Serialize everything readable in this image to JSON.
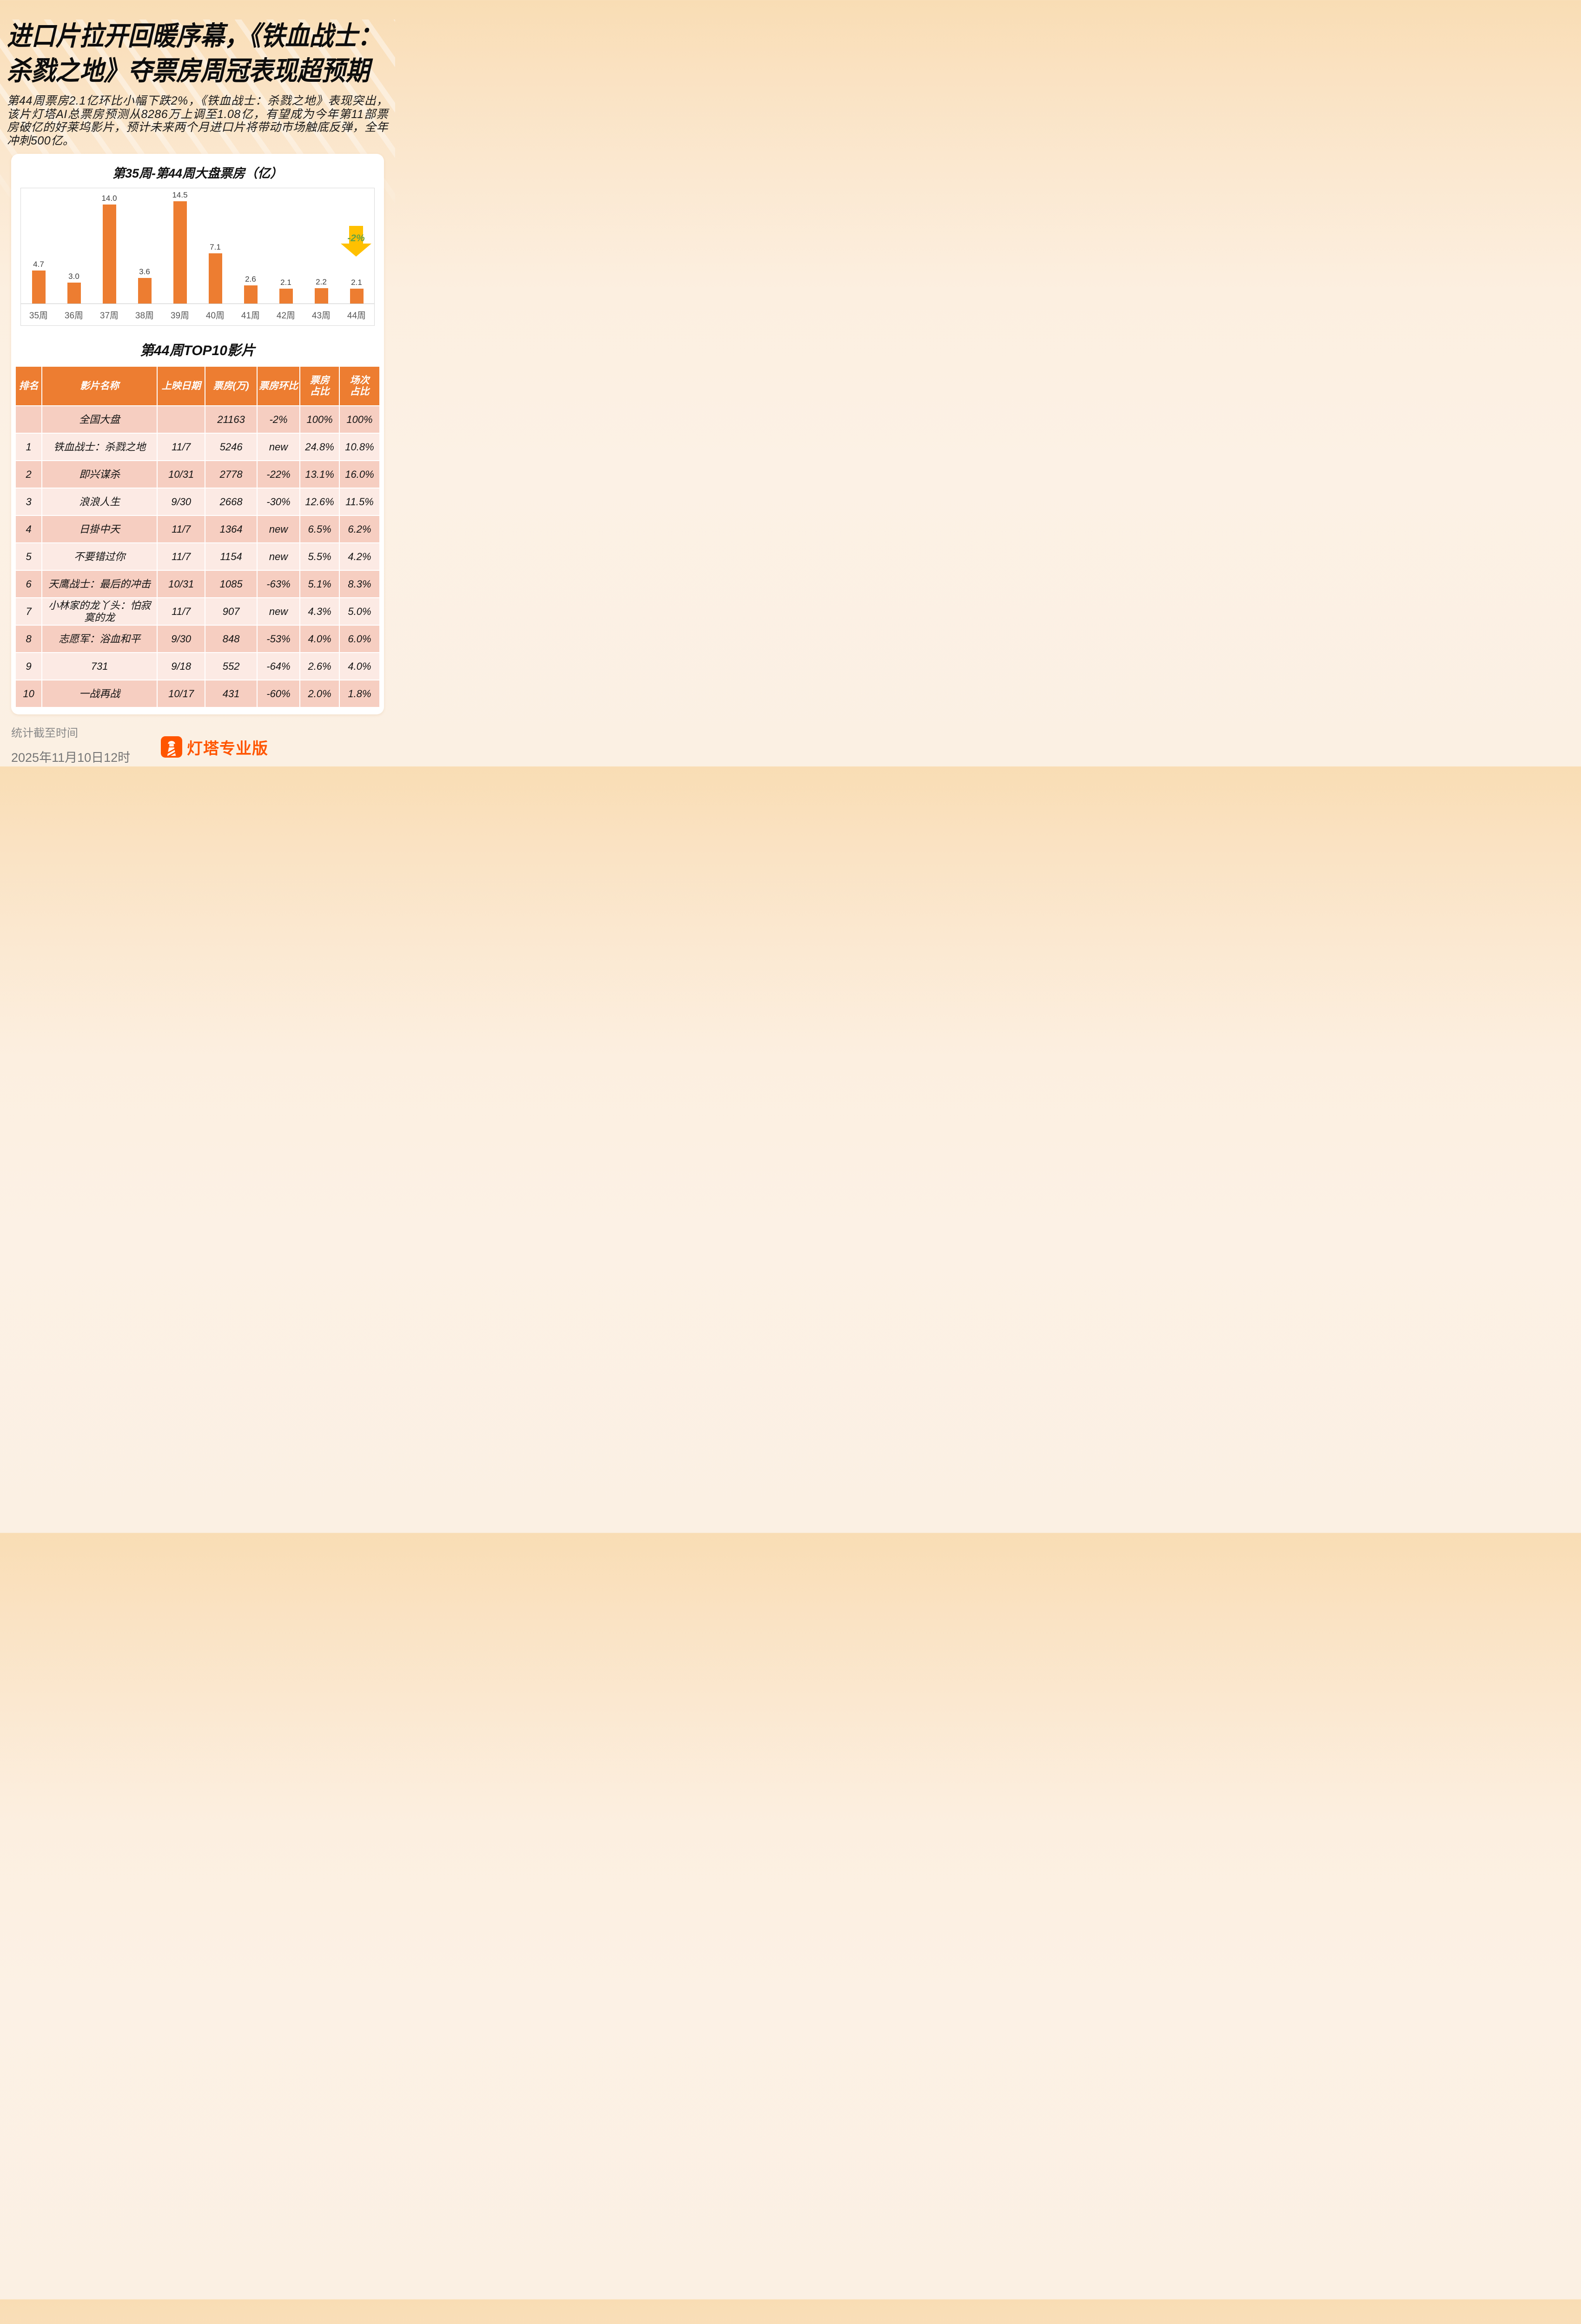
{
  "page": {
    "title_line1": "进口片拉开回暖序幕，《铁血战士：",
    "title_line2": "杀戮之地》夺票房周冠表现超预期",
    "intro": "第44周票房2.1亿环比小幅下跌2%，《铁血战士：杀戮之地》表现突出，该片灯塔AI总票房预测从8286万上调至1.08亿，有望成为今年第11部票房破亿的好莱坞影片，预计未来两个月进口片将带动市场触底反弹，全年冲刺500亿。"
  },
  "chart_data": {
    "type": "bar",
    "title": "第35周-第44周大盘票房（亿）",
    "categories": [
      "35周",
      "36周",
      "37周",
      "38周",
      "39周",
      "40周",
      "41周",
      "42周",
      "43周",
      "44周"
    ],
    "values": [
      4.7,
      3.0,
      14.0,
      3.6,
      14.5,
      7.1,
      2.6,
      2.1,
      2.2,
      2.1
    ],
    "bar_color": "#ED7D31",
    "value_label_color": "#3f3f3f",
    "tick_label_color": "#595959",
    "ylim": [
      0,
      15
    ],
    "grid": false,
    "legend": "none",
    "annotation": {
      "label": "-2%",
      "shape": "down-arrow",
      "target": "44周",
      "arrow_color": "#FFC000",
      "text_color": "#64A244"
    }
  },
  "table": {
    "title": "第44周TOP10影片",
    "headers": [
      "排名",
      "影片名称",
      "上映日期",
      "票房(万)",
      "票房环比",
      "票房\n占比",
      "场次\n占比"
    ],
    "col_widths_pct": [
      7.3,
      31.6,
      13.2,
      14.2,
      11.8,
      10.8,
      11.1
    ],
    "header_bg": "#ED7D31",
    "row_dark_bg": "#F6CEC1",
    "row_light_bg": "#FCEAE4",
    "highlight_color": "#E8160C",
    "rows": [
      {
        "rank": "",
        "name": "全国大盘",
        "date": "",
        "box": "21163",
        "wow": "-2%",
        "box_share": "100%",
        "session_share": "100%",
        "shade": "dark",
        "highlight": false
      },
      {
        "rank": "1",
        "name": "铁血战士：杀戮之地",
        "date": "11/7",
        "box": "5246",
        "wow": "new",
        "box_share": "24.8%",
        "session_share": "10.8%",
        "shade": "light",
        "highlight": true
      },
      {
        "rank": "2",
        "name": "即兴谋杀",
        "date": "10/31",
        "box": "2778",
        "wow": "-22%",
        "box_share": "13.1%",
        "session_share": "16.0%",
        "shade": "dark",
        "highlight": false
      },
      {
        "rank": "3",
        "name": "浪浪人生",
        "date": "9/30",
        "box": "2668",
        "wow": "-30%",
        "box_share": "12.6%",
        "session_share": "11.5%",
        "shade": "light",
        "highlight": false
      },
      {
        "rank": "4",
        "name": "日掛中天",
        "date": "11/7",
        "box": "1364",
        "wow": "new",
        "box_share": "6.5%",
        "session_share": "6.2%",
        "shade": "dark",
        "highlight": false
      },
      {
        "rank": "5",
        "name": "不要错过你",
        "date": "11/7",
        "box": "1154",
        "wow": "new",
        "box_share": "5.5%",
        "session_share": "4.2%",
        "shade": "light",
        "highlight": false
      },
      {
        "rank": "6",
        "name": "天鹰战士：最后的冲击",
        "date": "10/31",
        "box": "1085",
        "wow": "-63%",
        "box_share": "5.1%",
        "session_share": "8.3%",
        "shade": "dark",
        "highlight": false
      },
      {
        "rank": "7",
        "name": "小林家的龙丫头：怕寂寞的龙",
        "date": "11/7",
        "box": "907",
        "wow": "new",
        "box_share": "4.3%",
        "session_share": "5.0%",
        "shade": "light",
        "highlight": false
      },
      {
        "rank": "8",
        "name": "志愿军：浴血和平",
        "date": "9/30",
        "box": "848",
        "wow": "-53%",
        "box_share": "4.0%",
        "session_share": "6.0%",
        "shade": "dark",
        "highlight": false
      },
      {
        "rank": "9",
        "name": "731",
        "date": "9/18",
        "box": "552",
        "wow": "-64%",
        "box_share": "2.6%",
        "session_share": "4.0%",
        "shade": "light",
        "highlight": false
      },
      {
        "rank": "10",
        "name": "一战再战",
        "date": "10/17",
        "box": "431",
        "wow": "-60%",
        "box_share": "2.0%",
        "session_share": "1.8%",
        "shade": "dark",
        "highlight": false
      }
    ]
  },
  "footer": {
    "note": "统计截至时间",
    "timestamp": "2025年11月10日12时",
    "brand": "灯塔专业版",
    "brand_color": "#FF5500"
  }
}
